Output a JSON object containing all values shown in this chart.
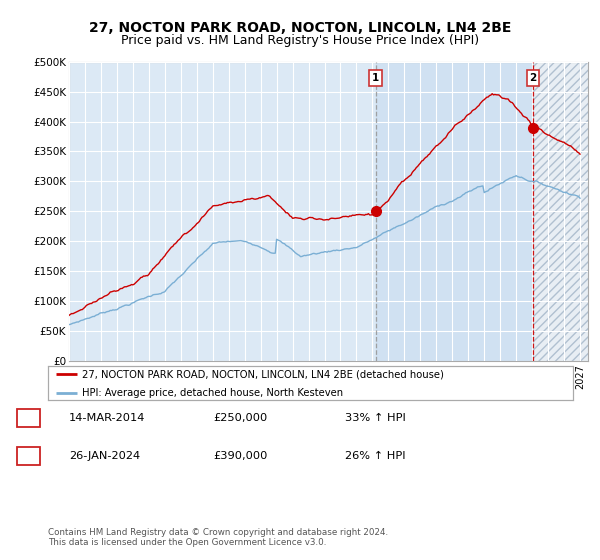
{
  "title": "27, NOCTON PARK ROAD, NOCTON, LINCOLN, LN4 2BE",
  "subtitle": "Price paid vs. HM Land Registry's House Price Index (HPI)",
  "ylabel_ticks": [
    "£0",
    "£50K",
    "£100K",
    "£150K",
    "£200K",
    "£250K",
    "£300K",
    "£350K",
    "£400K",
    "£450K",
    "£500K"
  ],
  "ytick_values": [
    0,
    50000,
    100000,
    150000,
    200000,
    250000,
    300000,
    350000,
    400000,
    450000,
    500000
  ],
  "ylim": [
    0,
    500000
  ],
  "xlim_start": 1995.0,
  "xlim_end": 2027.5,
  "marker1_x": 2014.2,
  "marker1_y": 250000,
  "marker1_label": "1",
  "marker1_date": "14-MAR-2014",
  "marker1_price": "£250,000",
  "marker1_hpi": "33% ↑ HPI",
  "marker2_x": 2024.07,
  "marker2_y": 390000,
  "marker2_label": "2",
  "marker2_date": "26-JAN-2024",
  "marker2_price": "£390,000",
  "marker2_hpi": "26% ↑ HPI",
  "dashed_line1_x": 2014.2,
  "dashed_line2_x": 2024.07,
  "red_line_label": "27, NOCTON PARK ROAD, NOCTON, LINCOLN, LN4 2BE (detached house)",
  "blue_line_label": "HPI: Average price, detached house, North Kesteven",
  "footer": "Contains HM Land Registry data © Crown copyright and database right 2024.\nThis data is licensed under the Open Government Licence v3.0.",
  "background_color": "#dce9f5",
  "grid_color": "#ffffff",
  "red_color": "#cc0000",
  "blue_color": "#7bafd4",
  "title_fontsize": 10,
  "subtitle_fontsize": 9,
  "shaded_region_color": "#c8ddf0",
  "hatch_region_color": "#e0e8f0"
}
